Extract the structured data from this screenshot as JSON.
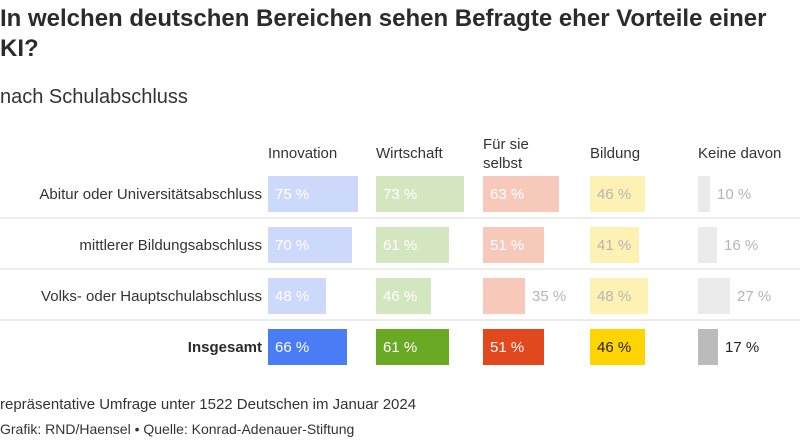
{
  "title": "In welchen deutschen Bereichen sehen Befragte eher Vorteile einer KI?",
  "subtitle": "nach Schulabschluss",
  "footnote": "repräsentative Umfrage unter 1522 Deutschen im Januar 2024",
  "credits": "Grafik: RND/Haensel • Quelle: Konrad-Adenauer-Stiftung",
  "chart_data": {
    "type": "bar",
    "categories": [
      "Abitur oder Universitätsabschluss",
      "mittlerer Bildungsabschluss",
      "Volks- oder Hauptschulabschluss",
      "Insgesamt"
    ],
    "series": [
      {
        "name": "Innovation",
        "values": [
          75,
          70,
          48,
          66
        ],
        "color": "#4a7cf5",
        "light_color": "#cdd9fb",
        "dark_text": false
      },
      {
        "name": "Wirtschaft",
        "values": [
          73,
          61,
          46,
          61
        ],
        "color": "#6aa924",
        "light_color": "#d3e6bf",
        "dark_text": false
      },
      {
        "name": "Für sie selbst",
        "values": [
          63,
          51,
          35,
          51
        ],
        "color": "#e2481e",
        "light_color": "#f6c9bb",
        "dark_text": false
      },
      {
        "name": "Bildung",
        "values": [
          46,
          41,
          48,
          46
        ],
        "color": "#ffd400",
        "light_color": "#fdf1b4",
        "dark_text": true
      },
      {
        "name": "Keine davon",
        "values": [
          10,
          16,
          27,
          17
        ],
        "color": "#bbbbbb",
        "light_color": "#ebebeb",
        "dark_text": true
      }
    ],
    "value_suffix": " %",
    "highlight_row": "Insgesamt",
    "xlim": [
      0,
      100
    ]
  }
}
